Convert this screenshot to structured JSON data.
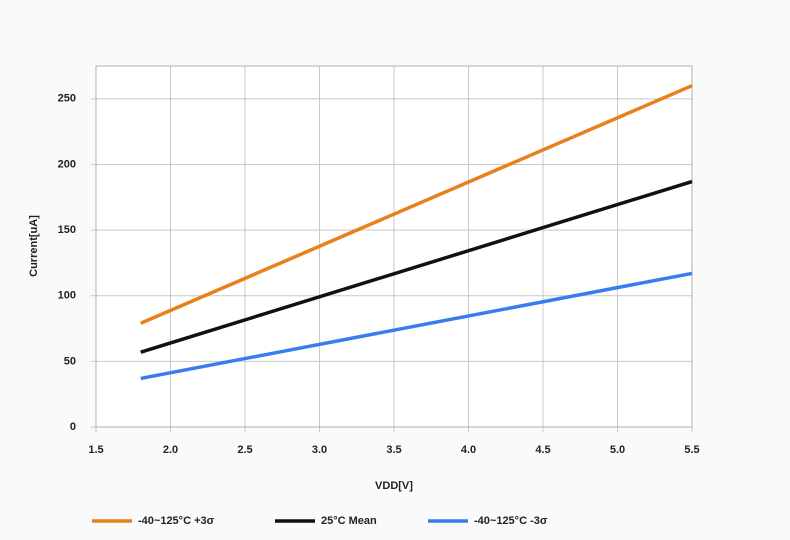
{
  "chart_data": {
    "type": "line",
    "x_label": "VDD[V]",
    "y_label": "Current[uA]",
    "x": [
      1.8,
      5.5
    ],
    "series": [
      {
        "name": "-40~125°C +3σ",
        "color": "#e8801c",
        "values": [
          79,
          260
        ]
      },
      {
        "name": "25°C Mean",
        "color": "#111111",
        "values": [
          57,
          187
        ]
      },
      {
        "name": "-40~125°C -3σ",
        "color": "#3a7cf0",
        "values": [
          37,
          117
        ]
      }
    ],
    "xlim": [
      1.5,
      5.5
    ],
    "xticks": [
      1.5,
      {
        "value": 2,
        "label": "2.0"
      },
      2.5,
      {
        "value": 3,
        "label": "3.0"
      },
      3.5,
      {
        "value": 4,
        "label": "4.0"
      },
      4.5,
      {
        "value": 5,
        "label": "5.0"
      },
      5.5
    ],
    "ylim": [
      0,
      275
    ],
    "yticks": [
      0,
      50,
      100,
      150,
      200,
      250
    ],
    "grid": true,
    "legend": "bottom"
  }
}
